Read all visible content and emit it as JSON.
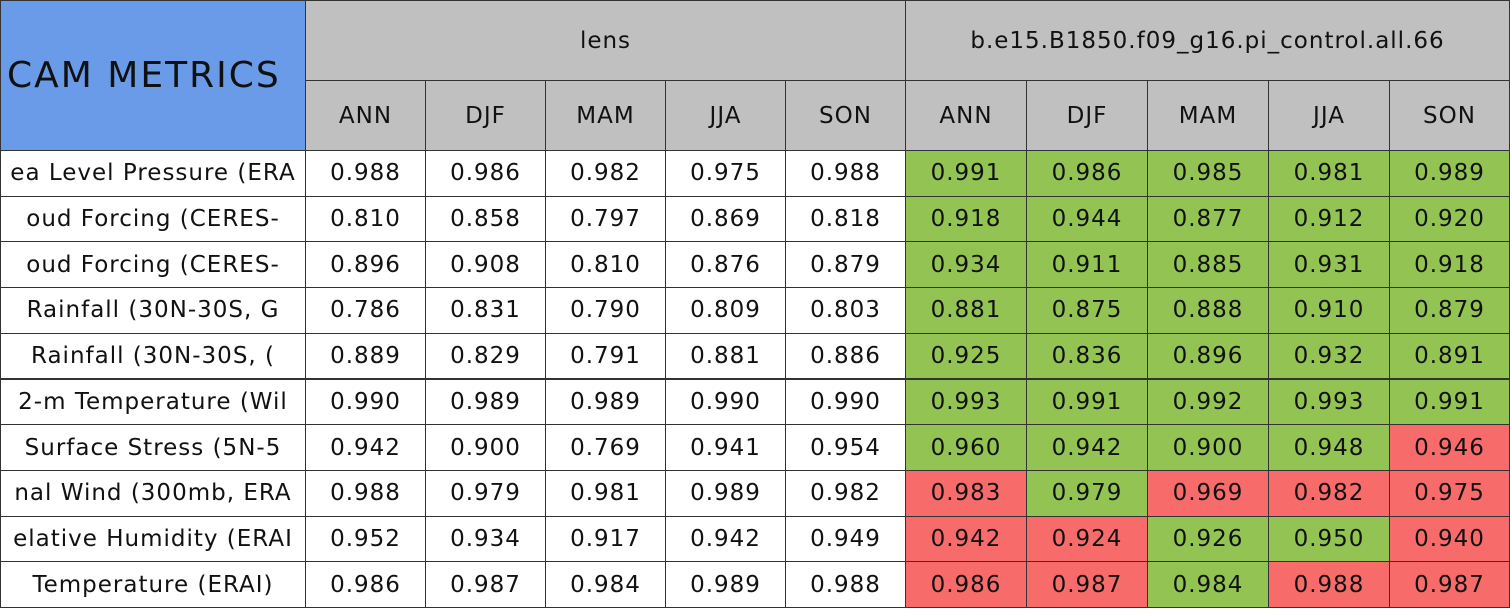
{
  "header": {
    "title": "CAM METRICS"
  },
  "groups": [
    {
      "name": "lens",
      "seasons": [
        "ANN",
        "DJF",
        "MAM",
        "JJA",
        "SON"
      ]
    },
    {
      "name": "b.e15.B1850.f09_g16.pi_control.all.66",
      "seasons": [
        "ANN",
        "DJF",
        "MAM",
        "JJA",
        "SON"
      ]
    }
  ],
  "rows": [
    {
      "label": "ea Level Pressure (ERA",
      "values": [
        "0.988",
        "0.986",
        "0.982",
        "0.975",
        "0.988",
        "0.991",
        "0.986",
        "0.985",
        "0.981",
        "0.989"
      ],
      "fills": [
        "#ffffff",
        "#ffffff",
        "#ffffff",
        "#ffffff",
        "#ffffff",
        "#92c353",
        "#92c353",
        "#92c353",
        "#92c353",
        "#92c353"
      ]
    },
    {
      "label": "oud Forcing (CERES-",
      "values": [
        "0.810",
        "0.858",
        "0.797",
        "0.869",
        "0.818",
        "0.918",
        "0.944",
        "0.877",
        "0.912",
        "0.920"
      ],
      "fills": [
        "#ffffff",
        "#ffffff",
        "#ffffff",
        "#ffffff",
        "#ffffff",
        "#92c353",
        "#92c353",
        "#92c353",
        "#92c353",
        "#92c353"
      ]
    },
    {
      "label": "oud Forcing (CERES-",
      "values": [
        "0.896",
        "0.908",
        "0.810",
        "0.876",
        "0.879",
        "0.934",
        "0.911",
        "0.885",
        "0.931",
        "0.918"
      ],
      "fills": [
        "#ffffff",
        "#ffffff",
        "#ffffff",
        "#ffffff",
        "#ffffff",
        "#92c353",
        "#92c353",
        "#92c353",
        "#92c353",
        "#92c353"
      ]
    },
    {
      "label": "Rainfall (30N-30S, G",
      "values": [
        "0.786",
        "0.831",
        "0.790",
        "0.809",
        "0.803",
        "0.881",
        "0.875",
        "0.888",
        "0.910",
        "0.879"
      ],
      "fills": [
        "#ffffff",
        "#ffffff",
        "#ffffff",
        "#ffffff",
        "#ffffff",
        "#92c353",
        "#92c353",
        "#92c353",
        "#92c353",
        "#92c353"
      ]
    },
    {
      "label": "Rainfall (30N-30S, (",
      "values": [
        "0.889",
        "0.829",
        "0.791",
        "0.881",
        "0.886",
        "0.925",
        "0.836",
        "0.896",
        "0.932",
        "0.891"
      ],
      "fills": [
        "#ffffff",
        "#ffffff",
        "#ffffff",
        "#ffffff",
        "#ffffff",
        "#92c353",
        "#92c353",
        "#92c353",
        "#92c353",
        "#92c353"
      ]
    },
    {
      "label": "2-m Temperature (Wil",
      "values": [
        "0.990",
        "0.989",
        "0.989",
        "0.990",
        "0.990",
        "0.993",
        "0.991",
        "0.992",
        "0.993",
        "0.991"
      ],
      "fills": [
        "#ffffff",
        "#ffffff",
        "#ffffff",
        "#ffffff",
        "#ffffff",
        "#92c353",
        "#92c353",
        "#92c353",
        "#92c353",
        "#92c353"
      ]
    },
    {
      "label": "Surface Stress (5N-5",
      "values": [
        "0.942",
        "0.900",
        "0.769",
        "0.941",
        "0.954",
        "0.960",
        "0.942",
        "0.900",
        "0.948",
        "0.946"
      ],
      "fills": [
        "#ffffff",
        "#ffffff",
        "#ffffff",
        "#ffffff",
        "#ffffff",
        "#92c353",
        "#92c353",
        "#92c353",
        "#92c353",
        "#f76b6b"
      ]
    },
    {
      "label": "nal Wind (300mb, ERA",
      "values": [
        "0.988",
        "0.979",
        "0.981",
        "0.989",
        "0.982",
        "0.983",
        "0.979",
        "0.969",
        "0.982",
        "0.975"
      ],
      "fills": [
        "#ffffff",
        "#ffffff",
        "#ffffff",
        "#ffffff",
        "#ffffff",
        "#f76b6b",
        "#92c353",
        "#f76b6b",
        "#f76b6b",
        "#f76b6b"
      ]
    },
    {
      "label": "elative Humidity (ERAI",
      "values": [
        "0.952",
        "0.934",
        "0.917",
        "0.942",
        "0.949",
        "0.942",
        "0.924",
        "0.926",
        "0.950",
        "0.940"
      ],
      "fills": [
        "#ffffff",
        "#ffffff",
        "#ffffff",
        "#ffffff",
        "#ffffff",
        "#f76b6b",
        "#f76b6b",
        "#92c353",
        "#92c353",
        "#f76b6b"
      ]
    },
    {
      "label": "Temperature (ERAI)",
      "values": [
        "0.986",
        "0.987",
        "0.984",
        "0.989",
        "0.988",
        "0.986",
        "0.987",
        "0.984",
        "0.988",
        "0.987"
      ],
      "fills": [
        "#ffffff",
        "#ffffff",
        "#ffffff",
        "#ffffff",
        "#ffffff",
        "#f76b6b",
        "#f76b6b",
        "#92c353",
        "#f76b6b",
        "#f76b6b"
      ]
    }
  ]
}
